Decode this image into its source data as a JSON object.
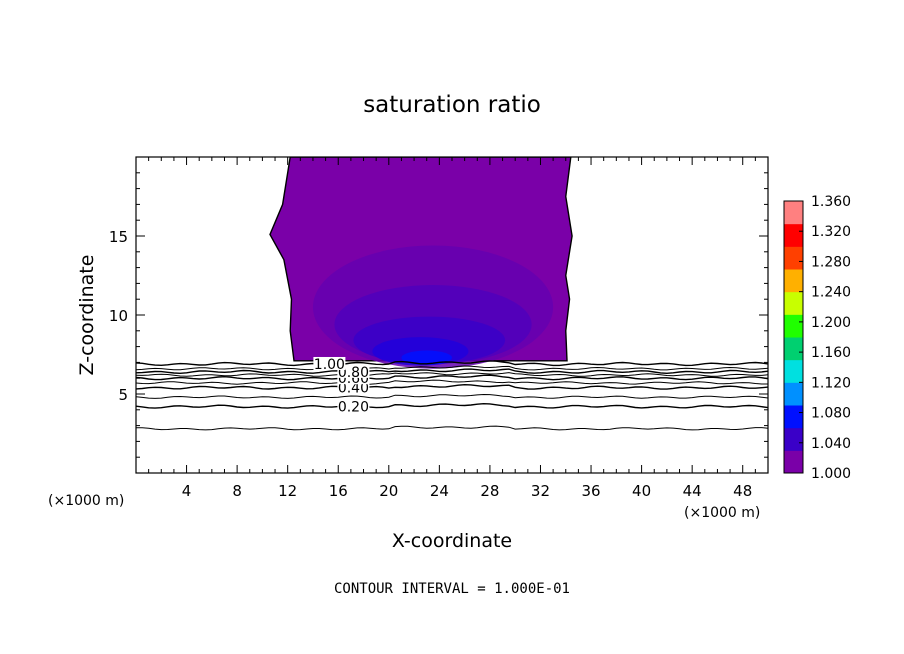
{
  "chart_data": {
    "type": "heatmap",
    "title": "saturation ratio",
    "xlabel": "X-coordinate",
    "ylabel": "Z-coordinate",
    "x_unit_left": "(×1000 m)",
    "x_unit_right": "(×1000 m)",
    "footer": "CONTOUR INTERVAL = 1.000E-01",
    "xlim": [
      0,
      50
    ],
    "ylim": [
      0,
      20
    ],
    "x_ticks": [
      4,
      8,
      12,
      16,
      20,
      24,
      28,
      32,
      36,
      40,
      44,
      48
    ],
    "x_tick_labels": [
      "4",
      "8",
      "12",
      "16",
      "20",
      "24",
      "28",
      "32",
      "36",
      "40",
      "44",
      "48"
    ],
    "y_ticks": [
      5,
      10,
      15
    ],
    "y_tick_labels": [
      "5",
      "10",
      "15"
    ],
    "colorbar": {
      "min": 1.0,
      "max": 1.36,
      "tick_values": [
        1.36,
        1.32,
        1.28,
        1.24,
        1.2,
        1.16,
        1.12,
        1.08,
        1.04,
        1.0
      ],
      "tick_labels": [
        "1.360",
        "1.320",
        "1.280",
        "1.240",
        "1.200",
        "1.160",
        "1.120",
        "1.080",
        "1.040",
        "1.000"
      ],
      "colors": [
        "#7a00a8",
        "#3a00c8",
        "#0010ff",
        "#0090ff",
        "#00e0e0",
        "#00d070",
        "#20ff00",
        "#c8ff00",
        "#ffb000",
        "#ff4000",
        "#ff0000",
        "#ff8080"
      ]
    },
    "contour_lines": [
      {
        "level": 0.2,
        "label": "0.20",
        "z": 4.2
      },
      {
        "level": 0.4,
        "label": "0.40",
        "z": 5.4
      },
      {
        "level": 0.6,
        "label": "0.60",
        "z": 6.0
      },
      {
        "level": 0.8,
        "label": "0.80",
        "z": 6.4
      },
      {
        "level": 1.0,
        "label": "1.00",
        "z": 6.9
      }
    ],
    "unlabeled_contour_z": [
      2.8,
      4.8,
      5.7,
      6.2,
      6.6
    ],
    "supersaturated_region": {
      "x_range": [
        11,
        34
      ],
      "z_range": [
        7,
        20
      ],
      "value_range": [
        1.0,
        1.07
      ],
      "cloud_fill": "#7a00a8"
    }
  }
}
